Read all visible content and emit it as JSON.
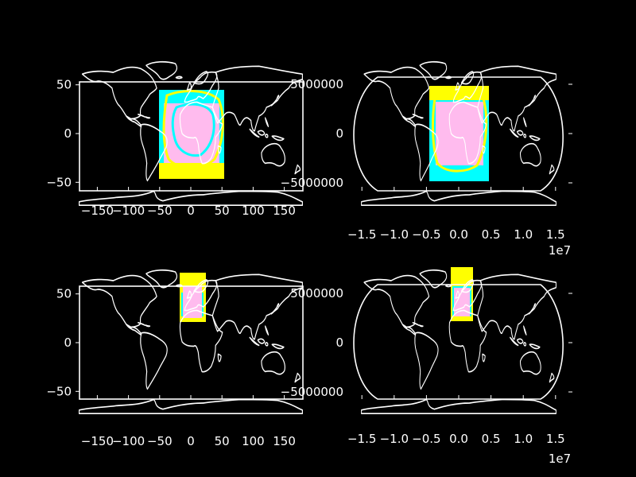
{
  "chart_data": [
    {
      "type": "map",
      "projection": "PlateCarree",
      "x_ticks": [
        "−150",
        "−100",
        "−50",
        "0",
        "50",
        "100",
        "150"
      ],
      "x_tick_values": [
        -150,
        -100,
        -50,
        0,
        50,
        100,
        150
      ],
      "y_ticks": [
        "−50",
        "0",
        "50"
      ],
      "y_tick_values": [
        -50,
        0,
        50
      ],
      "xlim": [
        -180,
        180
      ],
      "ylim": [
        -60,
        60
      ],
      "overlay_extent_deg": {
        "lon": [
          -45,
          50
        ],
        "lat": [
          -45,
          45
        ]
      },
      "colors": {
        "fill_a": "#00ffff",
        "fill_b": "#ffff00",
        "fill_c": "#ffbbee",
        "coastline": "#ffffff"
      }
    },
    {
      "type": "map",
      "projection": "Robinson-like",
      "x_ticks": [
        "−1.5",
        "−1.0",
        "−0.5",
        "0.0",
        "0.5",
        "1.0",
        "1.5"
      ],
      "x_tick_values": [
        -1.5,
        -1.0,
        -0.5,
        0.0,
        0.5,
        1.0,
        1.5
      ],
      "x_offset": "1e7",
      "y_ticks": [
        "5000000",
        "0",
        "−5000000"
      ],
      "y_tick_values": [
        5000000,
        0,
        -5000000
      ],
      "colors": {
        "fill_a": "#00ffff",
        "fill_b": "#ffff00",
        "fill_c": "#ffbbee",
        "coastline": "#ffffff"
      }
    },
    {
      "type": "map",
      "projection": "PlateCarree",
      "x_ticks": [
        "−150",
        "−100",
        "−50",
        "0",
        "50",
        "100",
        "150"
      ],
      "x_tick_values": [
        -150,
        -100,
        -50,
        0,
        50,
        100,
        150
      ],
      "y_ticks": [
        "−50",
        "0",
        "50"
      ],
      "y_tick_values": [
        -50,
        0,
        50
      ],
      "xlim": [
        -180,
        180
      ],
      "ylim": [
        -60,
        60
      ],
      "overlay_extent_deg": {
        "lon": [
          -18,
          20
        ],
        "lat": [
          20,
          75
        ]
      },
      "colors": {
        "fill_a": "#00ffff",
        "fill_b": "#ffff00",
        "fill_c": "#ffbbee",
        "coastline": "#ffffff"
      }
    },
    {
      "type": "map",
      "projection": "Robinson-like",
      "x_ticks": [
        "−1.5",
        "−1.0",
        "−0.5",
        "0.0",
        "0.5",
        "1.0",
        "1.5"
      ],
      "x_tick_values": [
        -1.5,
        -1.0,
        -0.5,
        0.0,
        0.5,
        1.0,
        1.5
      ],
      "x_offset": "1e7",
      "y_ticks": [
        "5000000",
        "0",
        "−5000000"
      ],
      "y_tick_values": [
        5000000,
        0,
        -5000000
      ],
      "colors": {
        "fill_a": "#00ffff",
        "fill_b": "#ffff00",
        "fill_c": "#ffbbee",
        "coastline": "#ffffff"
      }
    }
  ]
}
